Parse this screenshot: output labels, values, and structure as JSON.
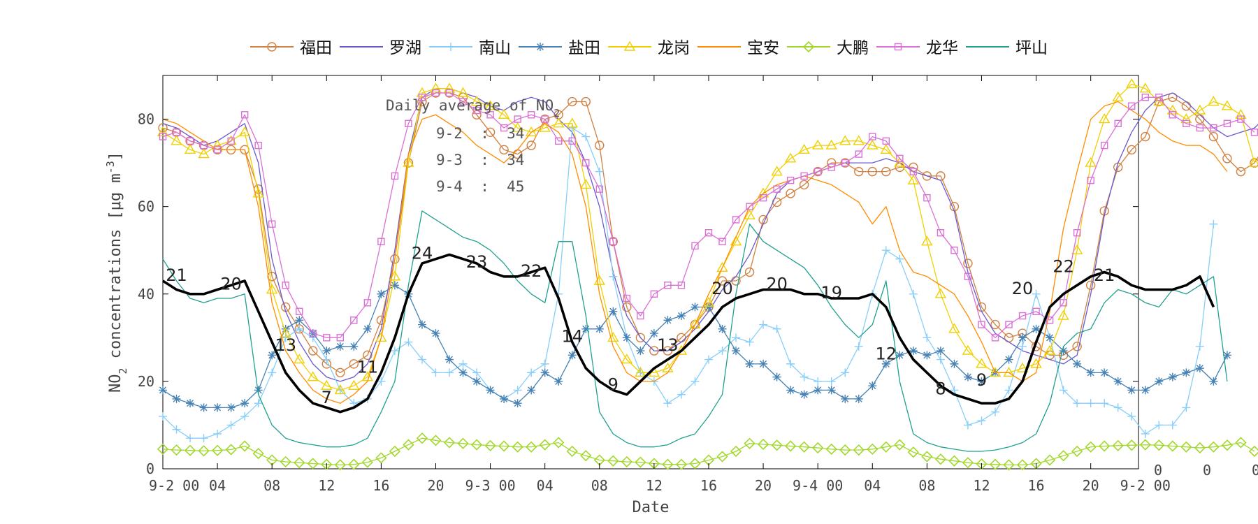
{
  "chart_data": {
    "type": "line",
    "xlabel": "Date",
    "ylabel_main": "NO",
    "ylabel_sub": "2",
    "ylabel_rest": " concentrations [",
    "ylabel_mu": "μ",
    "ylabel_unit": "g m",
    "ylabel_exp": "-3",
    "ylabel_close": "]",
    "ylim": [
      0,
      90
    ],
    "xlim": [
      0,
      70
    ],
    "yticks": [
      0,
      20,
      40,
      60,
      80
    ],
    "ytick_labels": [
      "0",
      "20",
      "40",
      "60",
      "80"
    ],
    "xtick_labels": [
      "9-2 00",
      "04",
      "08",
      "12",
      "16",
      "20",
      "9-3 00",
      "04",
      "08",
      "12",
      "16",
      "20",
      "9-4 00",
      "04",
      "08",
      "12",
      "16",
      "20",
      "9-2 00"
    ],
    "xtick_positions": [
      0,
      4,
      8,
      12,
      16,
      20,
      24,
      28,
      32,
      36,
      40,
      44,
      48,
      52,
      56,
      60,
      64,
      68,
      72
    ],
    "right_ticks": [
      "0",
      "0",
      "0"
    ],
    "annotation": {
      "title_main": "Daily average of NO",
      "title_sub": "2",
      "lines": [
        "9-2  :  34",
        "9-3  :  34",
        "9-4  :  45"
      ]
    },
    "legend": [
      "福田",
      "罗湖",
      "南山",
      "盐田",
      "龙岗",
      "宝安",
      "大鹏",
      "龙华",
      "坪山"
    ],
    "mean_labels": [
      {
        "x": 1,
        "y": 43,
        "text": "21"
      },
      {
        "x": 5,
        "y": 41,
        "text": "20"
      },
      {
        "x": 9,
        "y": 27,
        "text": "13"
      },
      {
        "x": 12,
        "y": 15,
        "text": "7"
      },
      {
        "x": 15,
        "y": 22,
        "text": "11"
      },
      {
        "x": 19,
        "y": 48,
        "text": "24"
      },
      {
        "x": 23,
        "y": 46,
        "text": "23"
      },
      {
        "x": 27,
        "y": 44,
        "text": "22"
      },
      {
        "x": 30,
        "y": 29,
        "text": "14"
      },
      {
        "x": 33,
        "y": 18,
        "text": "9"
      },
      {
        "x": 37,
        "y": 27,
        "text": "13"
      },
      {
        "x": 41,
        "y": 40,
        "text": "20"
      },
      {
        "x": 45,
        "y": 41,
        "text": "20"
      },
      {
        "x": 49,
        "y": 39,
        "text": "19"
      },
      {
        "x": 53,
        "y": 25,
        "text": "12"
      },
      {
        "x": 57,
        "y": 17,
        "text": "8"
      },
      {
        "x": 60,
        "y": 19,
        "text": "9"
      },
      {
        "x": 63,
        "y": 40,
        "text": "20"
      },
      {
        "x": 66,
        "y": 45,
        "text": "22"
      },
      {
        "x": 69,
        "y": 43,
        "text": "21"
      }
    ],
    "series": [
      {
        "name": "福田",
        "color": "#d08040",
        "marker": "circle",
        "width": 1.3,
        "values": [
          78,
          77,
          75,
          74,
          73,
          73,
          73,
          64,
          44,
          37,
          32,
          27,
          24,
          22,
          24,
          26,
          34,
          48,
          70,
          84,
          86,
          86,
          85,
          81,
          77,
          73,
          72,
          74,
          80,
          81,
          84,
          84,
          74,
          52,
          37,
          30,
          27,
          27,
          30,
          33,
          37,
          43,
          43,
          45,
          57,
          61,
          63,
          65,
          68,
          70,
          70,
          68,
          68,
          68,
          69,
          69,
          67,
          67,
          60,
          47,
          37,
          33,
          30,
          31,
          28,
          26,
          26,
          28,
          42,
          59,
          69,
          73,
          76,
          84,
          85,
          83,
          80,
          76,
          71,
          68,
          70,
          75,
          70
        ],
        "markers": true
      },
      {
        "name": "罗湖",
        "color": "#6a5acd",
        "marker": "none",
        "width": 1.3,
        "values": [
          79,
          78,
          76,
          74,
          75,
          77,
          79,
          70,
          48,
          36,
          29,
          24,
          21,
          20,
          21,
          24,
          32,
          50,
          72,
          85,
          87,
          87,
          86,
          85,
          83,
          82,
          84,
          85,
          84,
          80,
          77,
          70,
          60,
          45,
          35,
          30,
          27,
          27,
          29,
          32,
          36,
          41,
          44,
          49,
          56,
          63,
          66,
          67,
          68,
          69,
          70,
          70,
          70,
          71,
          70,
          68,
          67,
          66,
          59,
          45,
          36,
          31,
          29,
          27,
          26,
          25,
          24,
          26,
          40,
          58,
          70,
          77,
          82,
          85,
          86,
          84,
          81,
          78,
          76,
          77,
          78,
          81,
          64
        ]
      },
      {
        "name": "南山",
        "color": "#87cefa",
        "marker": "plus",
        "width": 1.3,
        "values": [
          12,
          9,
          7,
          7,
          8,
          10,
          12,
          15,
          22,
          30,
          32,
          30,
          25,
          18,
          15,
          16,
          20,
          27,
          29,
          25,
          22,
          22,
          24,
          22,
          18,
          16,
          18,
          22,
          24,
          40,
          78,
          76,
          68,
          44,
          30,
          22,
          20,
          15,
          17,
          20,
          25,
          27,
          30,
          29,
          33,
          32,
          24,
          21,
          20,
          20,
          22,
          28,
          40,
          50,
          48,
          40,
          30,
          25,
          18,
          10,
          11,
          13,
          18,
          28,
          40,
          30,
          18,
          15,
          15,
          15,
          14,
          12,
          8,
          10,
          10,
          14,
          28,
          56
        ]
      },
      {
        "name": "盐田",
        "color": "#4682b4",
        "marker": "star",
        "width": 1.3,
        "values": [
          18,
          16,
          15,
          14,
          14,
          14,
          15,
          18,
          26,
          32,
          34,
          31,
          27,
          28,
          28,
          32,
          40,
          42,
          40,
          33,
          31,
          25,
          22,
          20,
          18,
          16,
          15,
          18,
          22,
          20,
          26,
          32,
          32,
          36,
          30,
          27,
          31,
          34,
          35,
          37,
          37,
          32,
          27,
          24,
          24,
          21,
          18,
          17,
          18,
          18,
          16,
          16,
          19,
          24,
          26,
          27,
          26,
          27,
          24,
          21,
          20,
          22,
          25,
          30,
          32,
          30,
          27,
          24,
          22,
          22,
          20,
          18,
          18,
          20,
          21,
          22,
          23,
          20,
          26
        ]
      },
      {
        "name": "龙岗",
        "color": "#f0d000",
        "marker": "triangle",
        "width": 1.3,
        "values": [
          77,
          75,
          73,
          72,
          74,
          75,
          77,
          63,
          41,
          31,
          25,
          21,
          19,
          18,
          19,
          21,
          30,
          44,
          70,
          86,
          87,
          87,
          86,
          84,
          83,
          81,
          78,
          77,
          78,
          79,
          79,
          65,
          43,
          30,
          25,
          22,
          22,
          23,
          27,
          33,
          38,
          46,
          52,
          58,
          63,
          68,
          71,
          73,
          74,
          74,
          75,
          75,
          74,
          73,
          70,
          66,
          52,
          40,
          32,
          27,
          24,
          22,
          22,
          23,
          24,
          27,
          35,
          50,
          70,
          80,
          85,
          88,
          87,
          84,
          82,
          80,
          82,
          84,
          83,
          81,
          70
        ]
      },
      {
        "name": "宝安",
        "color": "#ff8c00",
        "marker": "none",
        "width": 1.3,
        "values": [
          80,
          79,
          77,
          75,
          73,
          73,
          73,
          60,
          38,
          27,
          22,
          18,
          16,
          15,
          17,
          20,
          30,
          48,
          72,
          80,
          81,
          79,
          77,
          74,
          72,
          70,
          73,
          77,
          79,
          77,
          72,
          60,
          40,
          28,
          22,
          20,
          20,
          22,
          27,
          33,
          40,
          46,
          53,
          60,
          63,
          65,
          66,
          67,
          66,
          65,
          63,
          61,
          56,
          60,
          50,
          45,
          44,
          42,
          40,
          35,
          29,
          22,
          22,
          20,
          22,
          36,
          55,
          68,
          80,
          83,
          84,
          82,
          80,
          77,
          75,
          74,
          74,
          72,
          68
        ]
      },
      {
        "name": "大鹏",
        "color": "#a2d82c",
        "marker": "diamond",
        "width": 1.3,
        "values": [
          4.5,
          4.3,
          4.2,
          4.1,
          4.2,
          4.4,
          5.2,
          3.5,
          2,
          1.6,
          1.4,
          1.2,
          1.0,
          0.9,
          1.0,
          1.5,
          2.5,
          4,
          5.5,
          7,
          6.5,
          6,
          5.8,
          5.5,
          5.3,
          5.2,
          5.0,
          5.0,
          5.5,
          6,
          4,
          3,
          2,
          1.8,
          1.6,
          1.5,
          1.2,
          1.0,
          1.0,
          1.2,
          2,
          2.8,
          4,
          5.8,
          5.6,
          5.4,
          5.2,
          5.0,
          4.8,
          4.5,
          4.3,
          4.3,
          4.5,
          5,
          5.5,
          3.8,
          2.8,
          2.2,
          1.8,
          1.4,
          1.1,
          1.0,
          0.9,
          0.9,
          1.2,
          2,
          3,
          4,
          5,
          5.2,
          5.3,
          5.4,
          5.5,
          5.4,
          5.2,
          5.0,
          4.8,
          5.0,
          5.4,
          6,
          4
        ]
      },
      {
        "name": "龙华",
        "color": "#da70d6",
        "marker": "square",
        "width": 1.3,
        "values": [
          76,
          77,
          75,
          74,
          73,
          75,
          81,
          74,
          56,
          42,
          36,
          31,
          30,
          30,
          34,
          38,
          52,
          67,
          79,
          85,
          86,
          86,
          84,
          82,
          81,
          78,
          80,
          81,
          80,
          75,
          75,
          70,
          64,
          52,
          39,
          35,
          40,
          42,
          42,
          51,
          54,
          52,
          57,
          60,
          62,
          64,
          66,
          67,
          68,
          69,
          70,
          72,
          76,
          75,
          71,
          68,
          62,
          54,
          50,
          44,
          33,
          30,
          33,
          35,
          36,
          34,
          38,
          54,
          66,
          74,
          79,
          83,
          85,
          85,
          81,
          79,
          78,
          78,
          79,
          80,
          77
        ]
      },
      {
        "name": "坪山",
        "color": "#20a090",
        "marker": "none",
        "width": 1.3,
        "values": [
          48,
          43,
          39,
          38,
          39,
          39,
          40,
          17,
          10,
          7,
          6,
          5.5,
          5,
          5,
          5.5,
          7,
          13,
          20,
          42,
          59,
          57,
          55,
          53,
          52,
          50,
          47,
          43,
          40,
          38,
          52,
          52,
          35,
          13,
          8,
          6,
          5,
          5,
          5.5,
          7,
          8,
          12,
          17,
          40,
          56,
          52,
          50,
          48,
          46,
          42,
          37,
          33,
          30,
          33,
          43,
          20,
          8,
          6,
          5,
          4.5,
          4,
          4,
          4.3,
          5,
          6,
          8,
          15,
          28,
          31,
          32,
          38,
          41,
          40,
          38,
          37,
          41,
          40,
          42,
          44,
          20
        ]
      },
      {
        "name": "",
        "color": "#000000",
        "marker": "none",
        "width": 3.6,
        "values": [
          43,
          41,
          40,
          40,
          41,
          42,
          43,
          36,
          29,
          22,
          18,
          15,
          14,
          13,
          14,
          16,
          22,
          30,
          40,
          47,
          48,
          49,
          48,
          47,
          45,
          44,
          44,
          45,
          46,
          39,
          29,
          23,
          20,
          18,
          17,
          20,
          23,
          25,
          27,
          30,
          33,
          37,
          39,
          40,
          41,
          41,
          41,
          40,
          40,
          39,
          39,
          39,
          40,
          37,
          30,
          25,
          22,
          19,
          17,
          16,
          15,
          15,
          16,
          20,
          29,
          37,
          40,
          42,
          44,
          45,
          44,
          42,
          41,
          41,
          41,
          42,
          44,
          37
        ]
      }
    ]
  }
}
